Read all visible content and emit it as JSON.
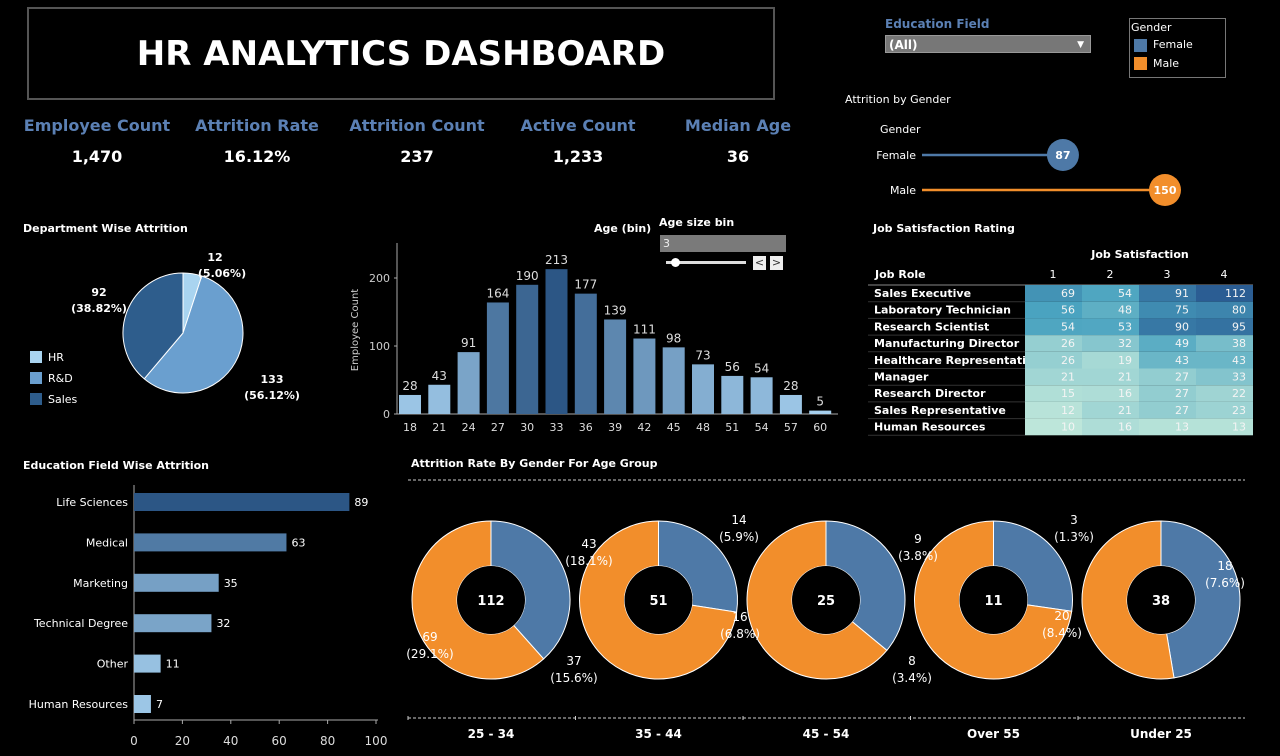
{
  "title": "HR ANALYTICS DASHBOARD",
  "kpis": [
    {
      "label": "Employee Count",
      "value": "1,470"
    },
    {
      "label": "Attrition Rate",
      "value": "16.12%"
    },
    {
      "label": "Attrition Count",
      "value": "237"
    },
    {
      "label": "Active Count",
      "value": "1,233"
    },
    {
      "label": "Median Age",
      "value": "36"
    }
  ],
  "filter": {
    "label": "Education Field",
    "value": "(All)"
  },
  "legend": {
    "title": "Gender",
    "items": [
      {
        "label": "Female",
        "color": "#4e79a7"
      },
      {
        "label": "Male",
        "color": "#f28e2b"
      }
    ]
  },
  "colors": {
    "female": "#4e79a7",
    "male": "#f28e2b",
    "kpi_label": "#5b80b4"
  },
  "chart_data": [
    {
      "id": "attrition_by_gender",
      "type": "lollipop",
      "title": "Attrition by Gender",
      "ylabel": "Gender",
      "categories": [
        "Female",
        "Male"
      ],
      "values": [
        87,
        150
      ]
    },
    {
      "id": "department",
      "type": "pie",
      "title": "Department Wise Attrition",
      "categories": [
        "HR",
        "R&D",
        "Sales"
      ],
      "values": [
        12,
        133,
        92
      ],
      "labels": [
        [
          "12",
          "(5.06%)"
        ],
        [
          "133",
          "(56.12%)"
        ],
        [
          "92",
          "(38.82%)"
        ]
      ],
      "colors": [
        "#a9d4f0",
        "#6a9fcf",
        "#2e5d8c"
      ],
      "legend": "left"
    },
    {
      "id": "age_hist",
      "type": "bar",
      "title": "Age (bin)",
      "ylabel": "Employee Count",
      "categories": [
        "18",
        "21",
        "24",
        "27",
        "30",
        "33",
        "36",
        "39",
        "42",
        "45",
        "48",
        "51",
        "54",
        "57",
        "60"
      ],
      "values": [
        28,
        43,
        91,
        164,
        190,
        213,
        177,
        139,
        111,
        98,
        73,
        56,
        54,
        28,
        5
      ],
      "yticks": [
        "0",
        "100",
        "200"
      ],
      "ylim": [
        0,
        250
      ],
      "bin_control": {
        "label": "Age size bin",
        "value": "3"
      }
    },
    {
      "id": "job_satisfaction",
      "type": "heatmap",
      "title": "Job Satisfaction Rating",
      "col_title": "Job Satisfaction",
      "row_title": "Job Role",
      "columns": [
        "1",
        "2",
        "3",
        "4"
      ],
      "rows": [
        {
          "role": "Sales Executive",
          "values": [
            69,
            54,
            91,
            112
          ]
        },
        {
          "role": "Laboratory Technician",
          "values": [
            56,
            48,
            75,
            80
          ]
        },
        {
          "role": "Research Scientist",
          "values": [
            54,
            53,
            90,
            95
          ]
        },
        {
          "role": "Manufacturing Director",
          "values": [
            26,
            32,
            49,
            38
          ]
        },
        {
          "role": "Healthcare Representative",
          "values": [
            26,
            19,
            43,
            43
          ]
        },
        {
          "role": "Manager",
          "values": [
            21,
            21,
            27,
            33
          ]
        },
        {
          "role": "Research Director",
          "values": [
            15,
            16,
            27,
            22
          ]
        },
        {
          "role": "Sales Representative",
          "values": [
            12,
            21,
            27,
            23
          ]
        },
        {
          "role": "Human Resources",
          "values": [
            10,
            16,
            13,
            13
          ]
        }
      ]
    },
    {
      "id": "education",
      "type": "bar",
      "orientation": "horizontal",
      "title": "Education Field Wise Attrition",
      "categories": [
        "Life Sciences",
        "Medical",
        "Marketing",
        "Technical Degree",
        "Other",
        "Human Resources"
      ],
      "values": [
        89,
        63,
        35,
        32,
        11,
        7
      ],
      "xticks": [
        "0",
        "20",
        "40",
        "60",
        "80",
        "100"
      ],
      "xlim": [
        0,
        100
      ]
    },
    {
      "id": "age_group_gender",
      "type": "pie",
      "subtype": "donut",
      "title": "Attrition Rate By Gender For Age Group",
      "groups": [
        {
          "label": "25 - 34",
          "total": "112",
          "female": 43,
          "male": 69,
          "female_label": [
            "43",
            "(18.1%)"
          ],
          "male_label": [
            "69",
            "(29.1%)"
          ]
        },
        {
          "label": "35 - 44",
          "total": "51",
          "female": 14,
          "male": 37,
          "female_label": [
            "14",
            "(5.9%)"
          ],
          "male_label": [
            "37",
            "(15.6%)"
          ]
        },
        {
          "label": "45 - 54",
          "total": "25",
          "female": 9,
          "male": 16,
          "female_label": [
            "9",
            "(3.8%)"
          ],
          "male_label": [
            "16",
            "(6.8%)"
          ]
        },
        {
          "label": "Over 55",
          "total": "11",
          "female": 3,
          "male": 8,
          "female_label": [
            "3",
            "(1.3%)"
          ],
          "male_label": [
            "8",
            "(3.4%)"
          ]
        },
        {
          "label": "Under 25",
          "total": "38",
          "female": 18,
          "male": 20,
          "female_label": [
            "18",
            "(7.6%)"
          ],
          "male_label": [
            "20",
            "(8.4%)"
          ]
        }
      ]
    }
  ]
}
